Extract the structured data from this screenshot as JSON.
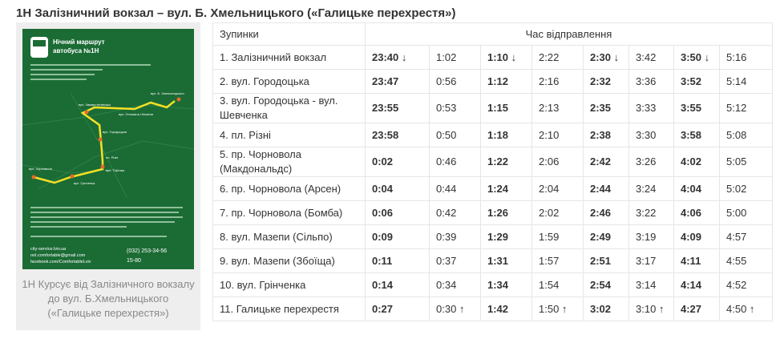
{
  "header": {
    "title": "1Н Залізничний вокзал – вул. Б. Хмельницького («Галицьке перехрестя»)"
  },
  "poster": {
    "title_line1": "Нічний маршрут",
    "title_line2": "автобуса №1H",
    "map_labels": [
      "вул. Замарстинівська",
      "вул. Б. Хмельницького",
      "вул. Гетьмана І.Мазепи",
      "пл. Різні",
      "вул. Торгова",
      "вул. Чорновола",
      "вул. Городоцька",
      "вул. Грінченка"
    ],
    "contacts": [
      "city-service.lviv.ua",
      "ool.comfortable@gmail.com",
      "facebook.com/ComfortableLviv"
    ],
    "phones": [
      "(032) 253-34-56",
      "15-80"
    ]
  },
  "caption": "1Н Курсує від Залізничного вокзалу до вул. Б.Хмельницького («Галицьке перехрестя»)",
  "table": {
    "headers": [
      "Зупинки",
      "Час відправлення"
    ],
    "rows": [
      [
        "1. Залізничний вокзал",
        "23:40 ↓",
        "1:02",
        "1:10 ↓",
        "2:22",
        "2:30 ↓",
        "3:42",
        "3:50 ↓",
        "5:16"
      ],
      [
        "2. вул. Городоцька",
        "23:47",
        "0:56",
        "1:12",
        "2:16",
        "2:32",
        "3:36",
        "3:52",
        "5:14"
      ],
      [
        "3. вул. Городоцька - вул. Шевченка",
        "23:55",
        "0:53",
        "1:15",
        "2:13",
        "2:35",
        "3:33",
        "3:55",
        "5:12"
      ],
      [
        "4. пл. Різні",
        "23:58",
        "0:50",
        "1:18",
        "2:10",
        "2:38",
        "3:30",
        "3:58",
        "5:08"
      ],
      [
        "5. пр. Чорновола (Макдональдс)",
        "0:02",
        "0:46",
        "1:22",
        "2:06",
        "2:42",
        "3:26",
        "4:02",
        "5:05"
      ],
      [
        "6. пр. Чорновола (Арсен)",
        "0:04",
        "0:44",
        "1:24",
        "2:04",
        "2:44",
        "3:24",
        "4:04",
        "5:02"
      ],
      [
        "7. пр. Чорновола (Бомба)",
        "0:06",
        "0:42",
        "1:26",
        "2:02",
        "2:46",
        "3:22",
        "4:06",
        "5:00"
      ],
      [
        "8. вул. Мазепи (Сільпо)",
        "0:09",
        "0:39",
        "1:29",
        "1:59",
        "2:49",
        "3:19",
        "4:09",
        "4:57"
      ],
      [
        "9. вул. Мазепи (Збоїща)",
        "0:11",
        "0:37",
        "1:31",
        "1:57",
        "2:51",
        "3:17",
        "4:11",
        "4:55"
      ],
      [
        "10. вул. Грінченка",
        "0:14",
        "0:34",
        "1:34",
        "1:54",
        "2:54",
        "3:14",
        "4:14",
        "4:52"
      ],
      [
        "11. Галицьке перехрестя",
        "0:27",
        "0:30 ↑",
        "1:42",
        "1:50 ↑",
        "3:02",
        "3:10 ↑",
        "4:27",
        "4:50 ↑"
      ]
    ]
  }
}
